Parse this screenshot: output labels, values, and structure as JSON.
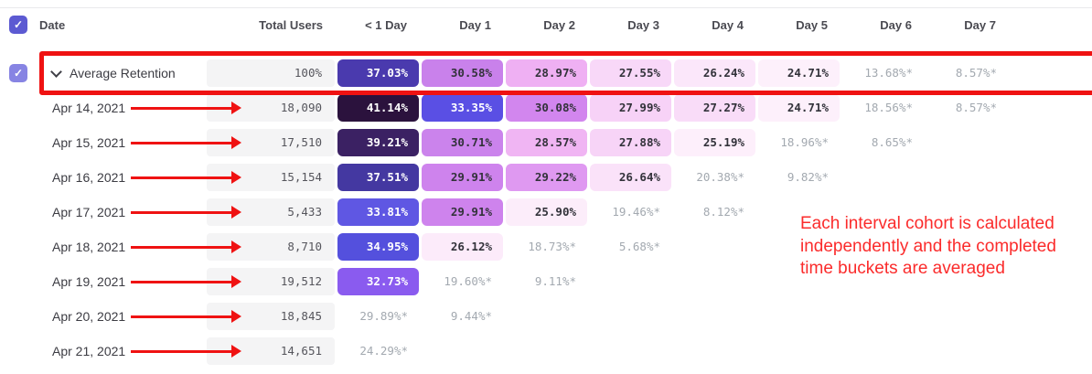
{
  "table": {
    "columns": [
      "Date",
      "Total Users",
      "< 1 Day",
      "Day 1",
      "Day 2",
      "Day 3",
      "Day 4",
      "Day 5",
      "Day 6",
      "Day 7"
    ],
    "header_checkbox": {
      "checked": true,
      "color": "#5c5ad2"
    },
    "average_row": {
      "checkbox": {
        "checked": true,
        "color": "#8784e3"
      },
      "label": "Average Retention",
      "total": "100%",
      "cells": [
        {
          "text": "37.03%",
          "bg": "#4A3AAE",
          "fg": "#ffffff"
        },
        {
          "text": "30.58%",
          "bg": "#C981EB",
          "fg": "#32323a"
        },
        {
          "text": "28.97%",
          "bg": "#EFB0F3",
          "fg": "#32323a"
        },
        {
          "text": "27.55%",
          "bg": "#F8D8F8",
          "fg": "#32323a"
        },
        {
          "text": "26.24%",
          "bg": "#FBE7FA",
          "fg": "#32323a"
        },
        {
          "text": "24.71%",
          "bg": "#FDF0FB",
          "fg": "#32323a"
        },
        {
          "text": "13.68%*",
          "bg": null,
          "fg": "#a3a9b0"
        },
        {
          "text": "8.57%*",
          "bg": null,
          "fg": "#a3a9b0"
        }
      ]
    },
    "rows": [
      {
        "date": "Apr 14, 2021",
        "total": "18,090",
        "cells": [
          {
            "text": "41.14%",
            "bg": "#2B123D",
            "fg": "#ffffff"
          },
          {
            "text": "33.35%",
            "bg": "#5A4FE4",
            "fg": "#ffffff"
          },
          {
            "text": "30.08%",
            "bg": "#D286EE",
            "fg": "#32323a"
          },
          {
            "text": "27.99%",
            "bg": "#F7D2F7",
            "fg": "#32323a"
          },
          {
            "text": "27.27%",
            "bg": "#F9DCF8",
            "fg": "#32323a"
          },
          {
            "text": "24.71%",
            "bg": "#FDF0FB",
            "fg": "#32323a"
          },
          {
            "text": "18.56%*",
            "bg": null,
            "fg": "#a3a9b0"
          },
          {
            "text": "8.57%*",
            "bg": null,
            "fg": "#a3a9b0"
          }
        ]
      },
      {
        "date": "Apr 15, 2021",
        "total": "17,510",
        "cells": [
          {
            "text": "39.21%",
            "bg": "#3B2163",
            "fg": "#ffffff"
          },
          {
            "text": "30.71%",
            "bg": "#CB83EC",
            "fg": "#32323a"
          },
          {
            "text": "28.57%",
            "bg": "#F0B5F3",
            "fg": "#32323a"
          },
          {
            "text": "27.88%",
            "bg": "#F7D4F7",
            "fg": "#32323a"
          },
          {
            "text": "25.19%",
            "bg": "#FDEFFB",
            "fg": "#32323a"
          },
          {
            "text": "18.96%*",
            "bg": null,
            "fg": "#a3a9b0"
          },
          {
            "text": "8.65%*",
            "bg": null,
            "fg": "#a3a9b0"
          },
          null
        ]
      },
      {
        "date": "Apr 16, 2021",
        "total": "15,154",
        "cells": [
          {
            "text": "37.51%",
            "bg": "#4438A1",
            "fg": "#ffffff"
          },
          {
            "text": "29.91%",
            "bg": "#CE83ED",
            "fg": "#32323a"
          },
          {
            "text": "29.22%",
            "bg": "#DF99F1",
            "fg": "#32323a"
          },
          {
            "text": "26.64%",
            "bg": "#FAE2F9",
            "fg": "#32323a"
          },
          {
            "text": "20.38%*",
            "bg": null,
            "fg": "#a3a9b0"
          },
          {
            "text": "9.82%*",
            "bg": null,
            "fg": "#a3a9b0"
          },
          null,
          null
        ]
      },
      {
        "date": "Apr 17, 2021",
        "total": "5,433",
        "cells": [
          {
            "text": "33.81%",
            "bg": "#5F57E3",
            "fg": "#ffffff"
          },
          {
            "text": "29.91%",
            "bg": "#CE83ED",
            "fg": "#32323a"
          },
          {
            "text": "25.90%",
            "bg": "#FCEDFA",
            "fg": "#32323a"
          },
          {
            "text": "19.46%*",
            "bg": null,
            "fg": "#a3a9b0"
          },
          {
            "text": "8.12%*",
            "bg": null,
            "fg": "#a3a9b0"
          },
          null,
          null,
          null
        ]
      },
      {
        "date": "Apr 18, 2021",
        "total": "8,710",
        "cells": [
          {
            "text": "34.95%",
            "bg": "#5450DD",
            "fg": "#ffffff"
          },
          {
            "text": "26.12%",
            "bg": "#FCEBFA",
            "fg": "#32323a"
          },
          {
            "text": "18.73%*",
            "bg": null,
            "fg": "#a3a9b0"
          },
          {
            "text": "5.68%*",
            "bg": null,
            "fg": "#a3a9b0"
          },
          null,
          null,
          null,
          null
        ]
      },
      {
        "date": "Apr 19, 2021",
        "total": "19,512",
        "cells": [
          {
            "text": "32.73%",
            "bg": "#8A5BEF",
            "fg": "#ffffff"
          },
          {
            "text": "19.60%*",
            "bg": null,
            "fg": "#a3a9b0"
          },
          {
            "text": "9.11%*",
            "bg": null,
            "fg": "#a3a9b0"
          },
          null,
          null,
          null,
          null,
          null
        ]
      },
      {
        "date": "Apr 20, 2021",
        "total": "18,845",
        "cells": [
          {
            "text": "29.89%*",
            "bg": null,
            "fg": "#a3a9b0"
          },
          {
            "text": "9.44%*",
            "bg": null,
            "fg": "#a3a9b0"
          },
          null,
          null,
          null,
          null,
          null,
          null
        ]
      },
      {
        "date": "Apr 21, 2021",
        "total": "14,651",
        "cells": [
          {
            "text": "24.29%*",
            "bg": null,
            "fg": "#a3a9b0"
          },
          null,
          null,
          null,
          null,
          null,
          null,
          null
        ]
      }
    ]
  },
  "annotations": {
    "note_text": "Each interval cohort is calculated independently and the completed time buckets are averaged",
    "note_color": "#fb2b2b",
    "highlight_red": "#ef1212",
    "check_glyph": "✓"
  }
}
